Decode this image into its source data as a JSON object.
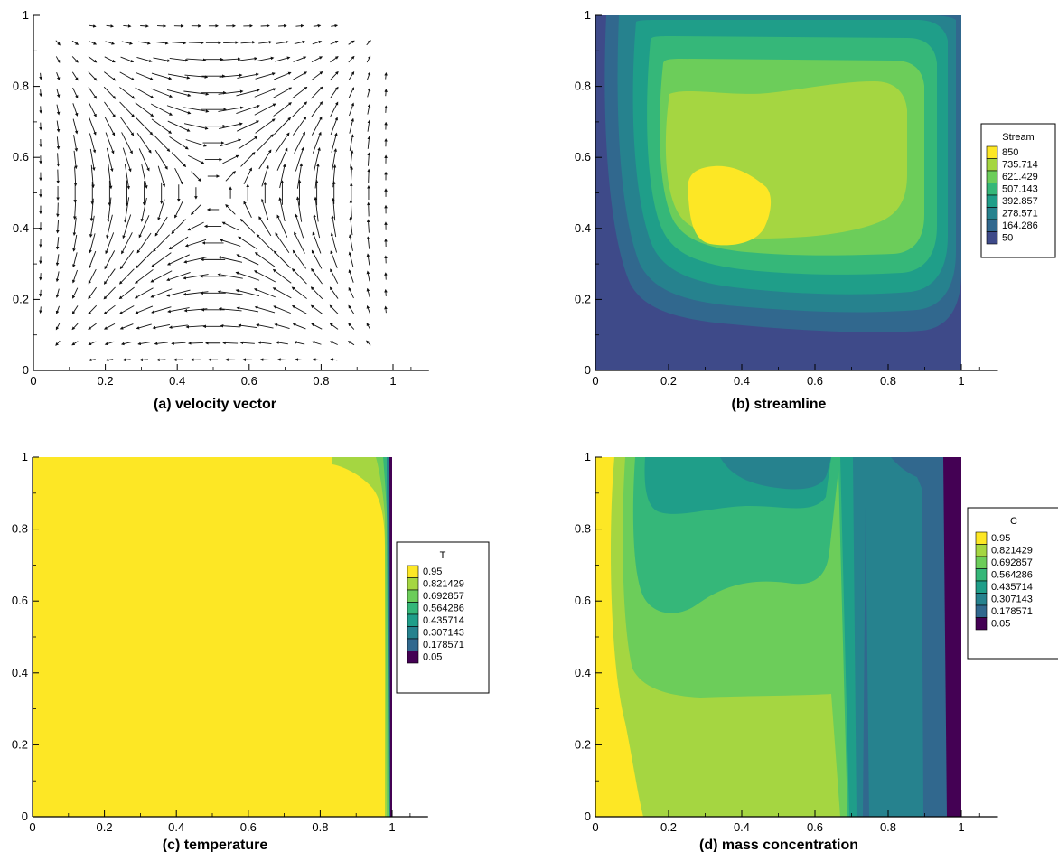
{
  "chart_data": [
    {
      "type": "quiver",
      "panel": "a",
      "caption": "(a) velocity vector",
      "xlim": [
        0,
        1.1
      ],
      "ylim": [
        0,
        1
      ],
      "xticks": [
        "0",
        "0.2",
        "0.4",
        "0.6",
        "0.8",
        "1"
      ],
      "yticks": [
        "0",
        "0.2",
        "0.4",
        "0.6",
        "0.8",
        "1"
      ],
      "field": "clockwise single recirculation cell; upward flow near x=1, downward near x=0"
    },
    {
      "type": "contour",
      "panel": "b",
      "caption": "(b) streamline",
      "xlim": [
        0,
        1.1
      ],
      "ylim": [
        0,
        1
      ],
      "xticks": [
        "0",
        "0.2",
        "0.4",
        "0.6",
        "0.8",
        "1"
      ],
      "yticks": [
        "0",
        "0.2",
        "0.4",
        "0.6",
        "0.8",
        "1"
      ],
      "legend": {
        "title": "Stream",
        "levels": [
          "850",
          "735.714",
          "621.429",
          "507.143",
          "392.857",
          "278.571",
          "164.286",
          "50"
        ],
        "colors": [
          "#fde725",
          "#a5d641",
          "#6ccd5a",
          "#35b779",
          "#1f9e89",
          "#26828e",
          "#31688e",
          "#3e4a89"
        ]
      },
      "center": [
        0.33,
        0.46
      ]
    },
    {
      "type": "contour",
      "panel": "c",
      "caption": "(c) temperature",
      "xlim": [
        0,
        1.1
      ],
      "ylim": [
        0,
        1
      ],
      "xticks": [
        "0",
        "0.2",
        "0.4",
        "0.6",
        "0.8",
        "1"
      ],
      "yticks": [
        "0",
        "0.2",
        "0.4",
        "0.6",
        "0.8",
        "1"
      ],
      "legend": {
        "title": "T",
        "levels": [
          "0.95",
          "0.821429",
          "0.692857",
          "0.564286",
          "0.435714",
          "0.307143",
          "0.178571",
          "0.05"
        ],
        "colors": [
          "#fde725",
          "#a5d641",
          "#6ccd5a",
          "#35b779",
          "#1f9e89",
          "#26828e",
          "#31688e",
          "#440154"
        ]
      }
    },
    {
      "type": "contour",
      "panel": "d",
      "caption": "(d) mass concentration",
      "xlim": [
        0,
        1.1
      ],
      "ylim": [
        0,
        1
      ],
      "xticks": [
        "0",
        "0.2",
        "0.4",
        "0.6",
        "0.8",
        "1"
      ],
      "yticks": [
        "0",
        "0.2",
        "0.4",
        "0.6",
        "0.8",
        "1"
      ],
      "legend": {
        "title": "C",
        "levels": [
          "0.95",
          "0.821429",
          "0.692857",
          "0.564286",
          "0.435714",
          "0.307143",
          "0.178571",
          "0.05"
        ],
        "colors": [
          "#fde725",
          "#a5d641",
          "#6ccd5a",
          "#35b779",
          "#1f9e89",
          "#26828e",
          "#31688e",
          "#440154"
        ]
      }
    }
  ]
}
